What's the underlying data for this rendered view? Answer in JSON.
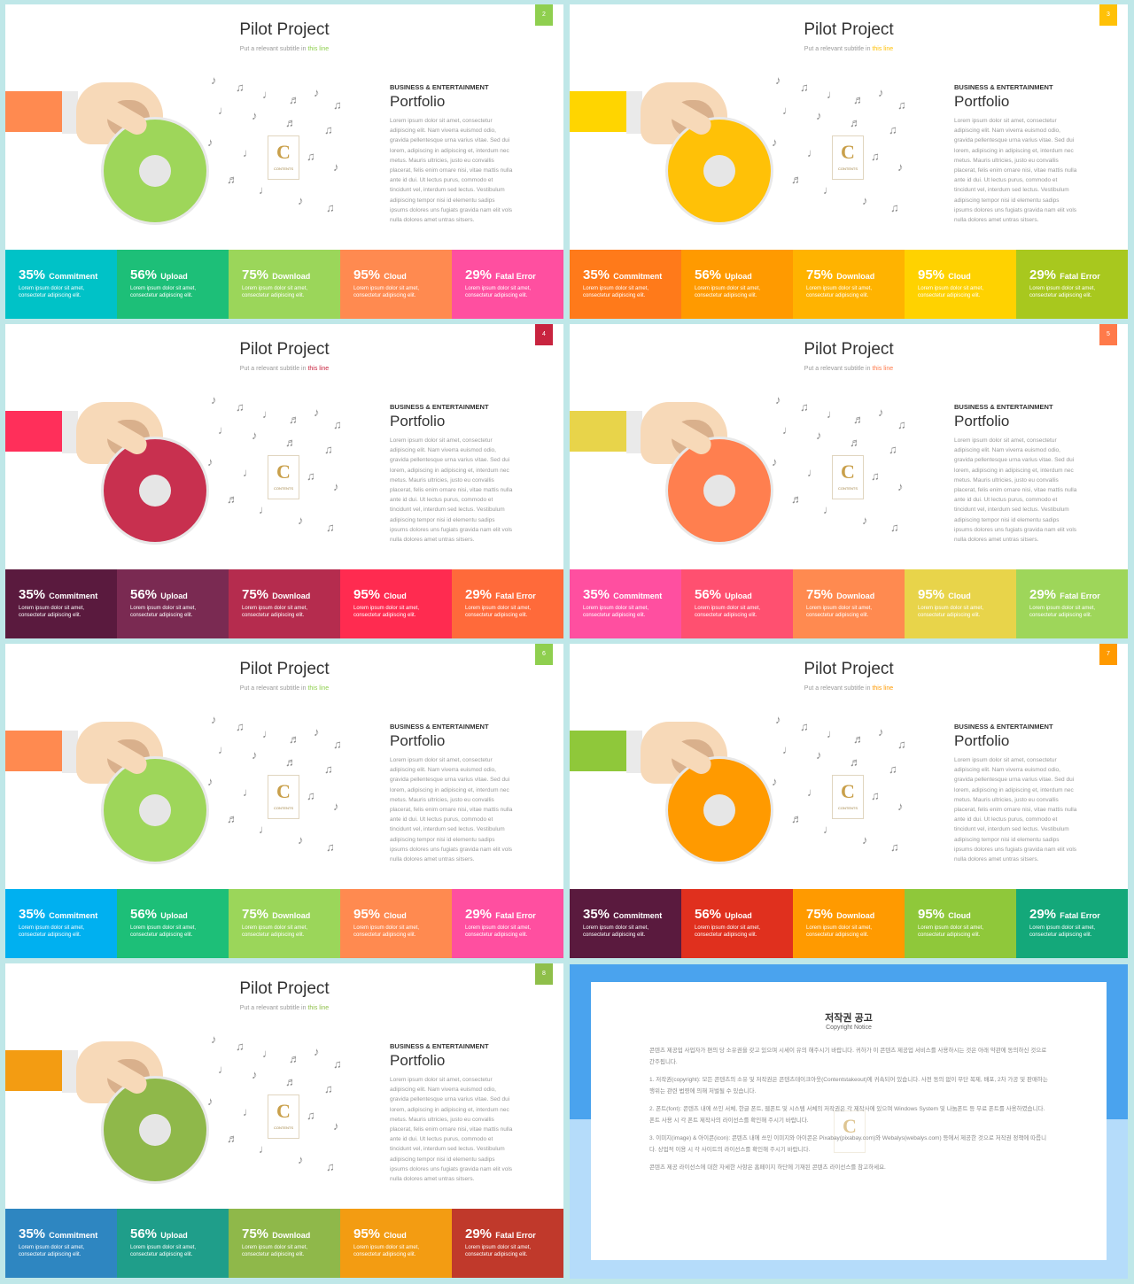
{
  "common": {
    "title": "Pilot Project",
    "subtitle_prefix": "Put a relevant subtitle in ",
    "subtitle_highlight": "this line",
    "category": "BUSINESS & ENTERTAINMENT",
    "portfolio_title": "Portfolio",
    "body": "Lorem ipsum dolor sit amet, consectetur adipiscing elit. Nam viverra euismod odio, gravida pellentesque urna varius vitae. Sed dui lorem, adipiscing in adipiscing et, interdum nec metus. Mauris ultricies, justo eu convallis placerat, felis enim ornare nisi, vitae mattis nulla ante id dui. Ut lectus purus, commodo et tincidunt vel, interdum sed lectus. Vestibulum adipiscing tempor nisi id elementu sadips ipsums dolores uns fugiats gravida nam elit vols nulla dolores amet untras sitsers.",
    "logo_letter": "C",
    "logo_text": "CONTENTS",
    "stats": [
      {
        "pct": "35%",
        "label": "Commitment",
        "desc1": "Lorem ipsum dolor sit amet,",
        "desc2": "consectetur adipiscing elit."
      },
      {
        "pct": "56%",
        "label": "Upload",
        "desc1": "Lorem ipsum dolor sit amet,",
        "desc2": "consectetur adipiscing elit."
      },
      {
        "pct": "75%",
        "label": "Download",
        "desc1": "Lorem ipsum dolor sit amet,",
        "desc2": "consectetur adipiscing elit."
      },
      {
        "pct": "95%",
        "label": "Cloud",
        "desc1": "Lorem ipsum dolor sit amet,",
        "desc2": "consectetur adipiscing elit."
      },
      {
        "pct": "29%",
        "label": "Fatal Error",
        "desc1": "Lorem ipsum dolor sit amet,",
        "desc2": "consectetur adipiscing elit."
      }
    ]
  },
  "slides": [
    {
      "number": "2",
      "tag_color": "#8fcf4f",
      "highlight": "#8fcf4f",
      "arm": "#ff8a50",
      "disc": "#9ed65a",
      "band": [
        "#00c2c7",
        "#1dbf78",
        "#9bd65a",
        "#ff8a50",
        "#ff4fa0"
      ]
    },
    {
      "number": "3",
      "tag_color": "#ffc107",
      "highlight": "#ffc107",
      "arm": "#ffd500",
      "disc": "#ffc107",
      "band": [
        "#ff7a1a",
        "#ff9a00",
        "#ffb300",
        "#ffd200",
        "#a8c81e"
      ]
    },
    {
      "number": "4",
      "tag_color": "#c8243f",
      "highlight": "#c8243f",
      "arm": "#ff2f5a",
      "disc": "#c8304f",
      "band": [
        "#5a1a3e",
        "#7a2a52",
        "#b52c4e",
        "#ff2b50",
        "#ff6a3a"
      ]
    },
    {
      "number": "5",
      "tag_color": "#ff7a4a",
      "highlight": "#ff7a4a",
      "arm": "#e8d44a",
      "disc": "#ff7f4f",
      "band": [
        "#ff4fa0",
        "#ff5070",
        "#ff8a50",
        "#e8d44a",
        "#9ed65a"
      ]
    },
    {
      "number": "6",
      "tag_color": "#8fcf4f",
      "highlight": "#8fcf4f",
      "arm": "#ff8a50",
      "disc": "#9ed65a",
      "band": [
        "#00b0f0",
        "#1dbf78",
        "#9bd65a",
        "#ff8a50",
        "#ff4fa0"
      ]
    },
    {
      "number": "7",
      "tag_color": "#ff9a00",
      "highlight": "#ff9a00",
      "arm": "#8fc83a",
      "disc": "#ff9a00",
      "band": [
        "#5a1a3e",
        "#e0301e",
        "#ff9a00",
        "#8fc83a",
        "#14a87a"
      ]
    },
    {
      "number": "8",
      "tag_color": "#8fbf4a",
      "highlight": "#8fbf4a",
      "arm": "#f39c12",
      "disc": "#8fb84a",
      "band": [
        "#2e86c1",
        "#1f9e8a",
        "#8fb84a",
        "#f39c12",
        "#c0392b"
      ]
    }
  ],
  "notice": {
    "title": "저작권 공고",
    "subtitle": "Copyright Notice",
    "p0": "콘텐츠 제공업 사업자가 편의 당 소유권을 갖고 있으며 시세이 유의 해주시기 바랍니다. 귀하가 이 콘텐츠 제공업 서비스를 사용하시는 것은 아래 약관에 동의하신 것으로 간주됩니다.",
    "p1": "1. 저작권(copyright): 모든 콘텐츠의 소유 및 저작권은 콘텐츠테이크아웃(Contentstakeout)에 귀속되어 있습니다. 사전 동의 없이 무단 복제, 배포, 2차 가공 및 판매하는 행위는 관련 법령에 의해 처벌될 수 있습니다.",
    "p2": "2. 폰트(font): 콘텐츠 내에 쓰인 서체, 한글 폰트, 웹폰트 및 시스템 서체의 저작권은 각 제작사에 있으며 Windows System 및 나눔폰트 등 무료 폰트를 사용하였습니다. 폰트 사용 시 각 폰트 제작사의 라이선스를 확인해 주시기 바랍니다.",
    "p3": "3. 이미지(image) & 아이콘(icon): 콘텐츠 내에 쓰인 이미지와 아이콘은 Pixabay(pixabay.com)와 Webalys(webalys.com) 등에서 제공한 것으로 저작권 정책에 따릅니다. 상업적 이용 시 각 사이트의 라이선스를 확인해 주시기 바랍니다.",
    "p4": "콘텐츠 제공 라이선스에 대한 자세한 사항은 홈페이지 하단에 기재된 콘텐츠 라이선스를 참고하세요.",
    "logo_letter": "C"
  }
}
